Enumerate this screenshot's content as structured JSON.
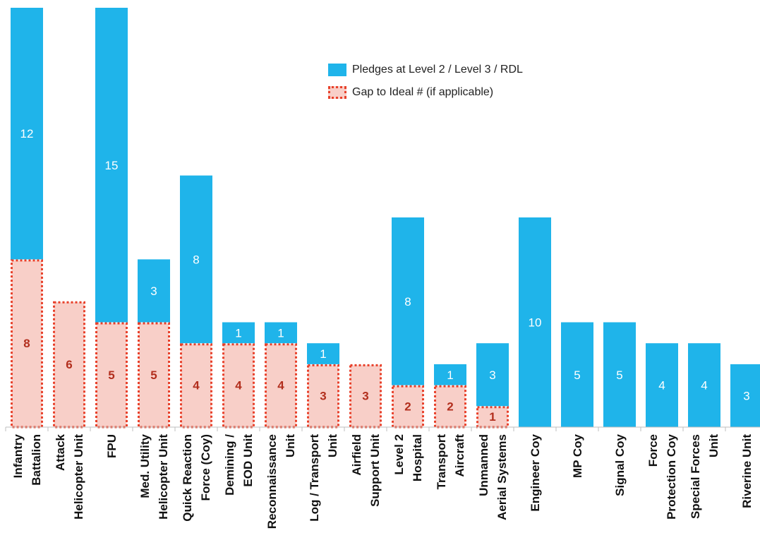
{
  "colors": {
    "pledge": "#1fb4ea",
    "gap_fill": "#f8cfc8",
    "gap_border": "#e8402a",
    "gap_text": "#b22e1d",
    "pledge_text": "#ffffff",
    "axis": "#bfbfbf",
    "label_text": "#111111"
  },
  "chart_data": {
    "type": "bar",
    "stacked": true,
    "categories": [
      [
        "Infantry",
        "Battalion"
      ],
      [
        "Attack",
        "Helicopter Unit"
      ],
      [
        "FPU"
      ],
      [
        "Med. Utility",
        "Helicopter Unit"
      ],
      [
        "Quick Reaction",
        "Force (Coy)"
      ],
      [
        "Demining /",
        "EOD Unit"
      ],
      [
        "Reconnaissance",
        "Unit"
      ],
      [
        "Log / Transport",
        "Unit"
      ],
      [
        "Airfield",
        "Support Unit"
      ],
      [
        "Level 2",
        "Hospital"
      ],
      [
        "Transport",
        "Aircraft"
      ],
      [
        "Unmanned",
        "Aerial Systems"
      ],
      [
        "Engineer Coy"
      ],
      [
        "MP Coy"
      ],
      [
        "Signal Coy"
      ],
      [
        "Force",
        "Protection Coy"
      ],
      [
        "Special Forces",
        "Unit"
      ],
      [
        "Riverine Unit"
      ]
    ],
    "series": [
      {
        "name": "Gap to Ideal  # (if applicable)",
        "values": [
          8,
          6,
          5,
          5,
          4,
          4,
          4,
          3,
          3,
          2,
          2,
          1,
          0,
          0,
          0,
          0,
          0,
          0
        ]
      },
      {
        "name": "Pledges at Level 2 / Level 3 / RDL",
        "values": [
          12,
          0,
          15,
          3,
          8,
          1,
          1,
          1,
          0,
          8,
          1,
          3,
          10,
          5,
          5,
          4,
          4,
          3
        ]
      }
    ],
    "ylim": [
      0,
      20
    ],
    "grid": false,
    "legend_position": "top-center"
  }
}
